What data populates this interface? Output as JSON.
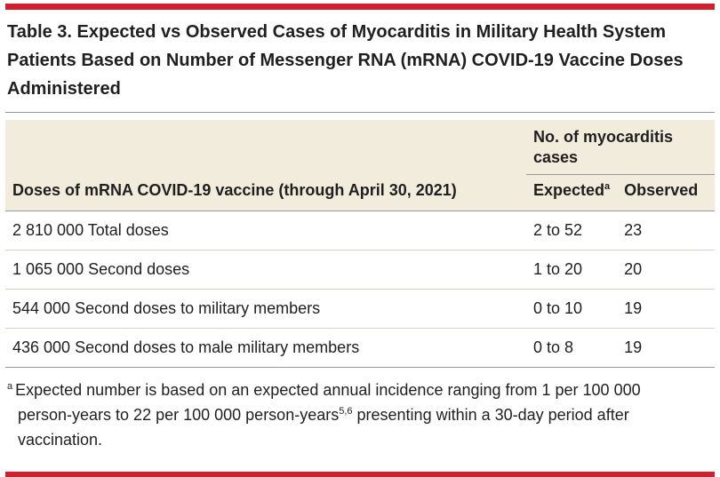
{
  "theme": {
    "accent_red": "#d01f2e",
    "header_beige": "#f2ecdc",
    "text_color": "#1f1f1f"
  },
  "title": "Table 3. Expected vs Observed Cases of Myocarditis in Military Health System Patients Based on Number of Messenger RNA (mRNA) COVID-19 Vaccine Doses Administered",
  "table": {
    "columns": {
      "doses_header": "Doses of mRNA COVID-19 vaccine (through April 30, 2021)",
      "group_header": "No. of myocarditis cases",
      "expected_header": "Expected",
      "expected_marker": "a",
      "observed_header": "Observed"
    },
    "rows": [
      {
        "doses": "2 810 000 Total doses",
        "expected": "2 to 52",
        "observed": "23"
      },
      {
        "doses": "1 065 000 Second doses",
        "expected": "1 to 20",
        "observed": "20"
      },
      {
        "doses": "544 000 Second doses to military members",
        "expected": "0 to 10",
        "observed": "19"
      },
      {
        "doses": "436 000 Second doses to male military members",
        "expected": "0 to 8",
        "observed": "19"
      }
    ]
  },
  "footnote": {
    "marker": "a",
    "text_part1": "Expected number is based on an expected annual incidence ranging from 1 per 100 000 person-years to 22 per 100 000 person-years",
    "reference_superscript": "5,6",
    "text_part2": " presenting within a 30-day period after vaccination."
  }
}
